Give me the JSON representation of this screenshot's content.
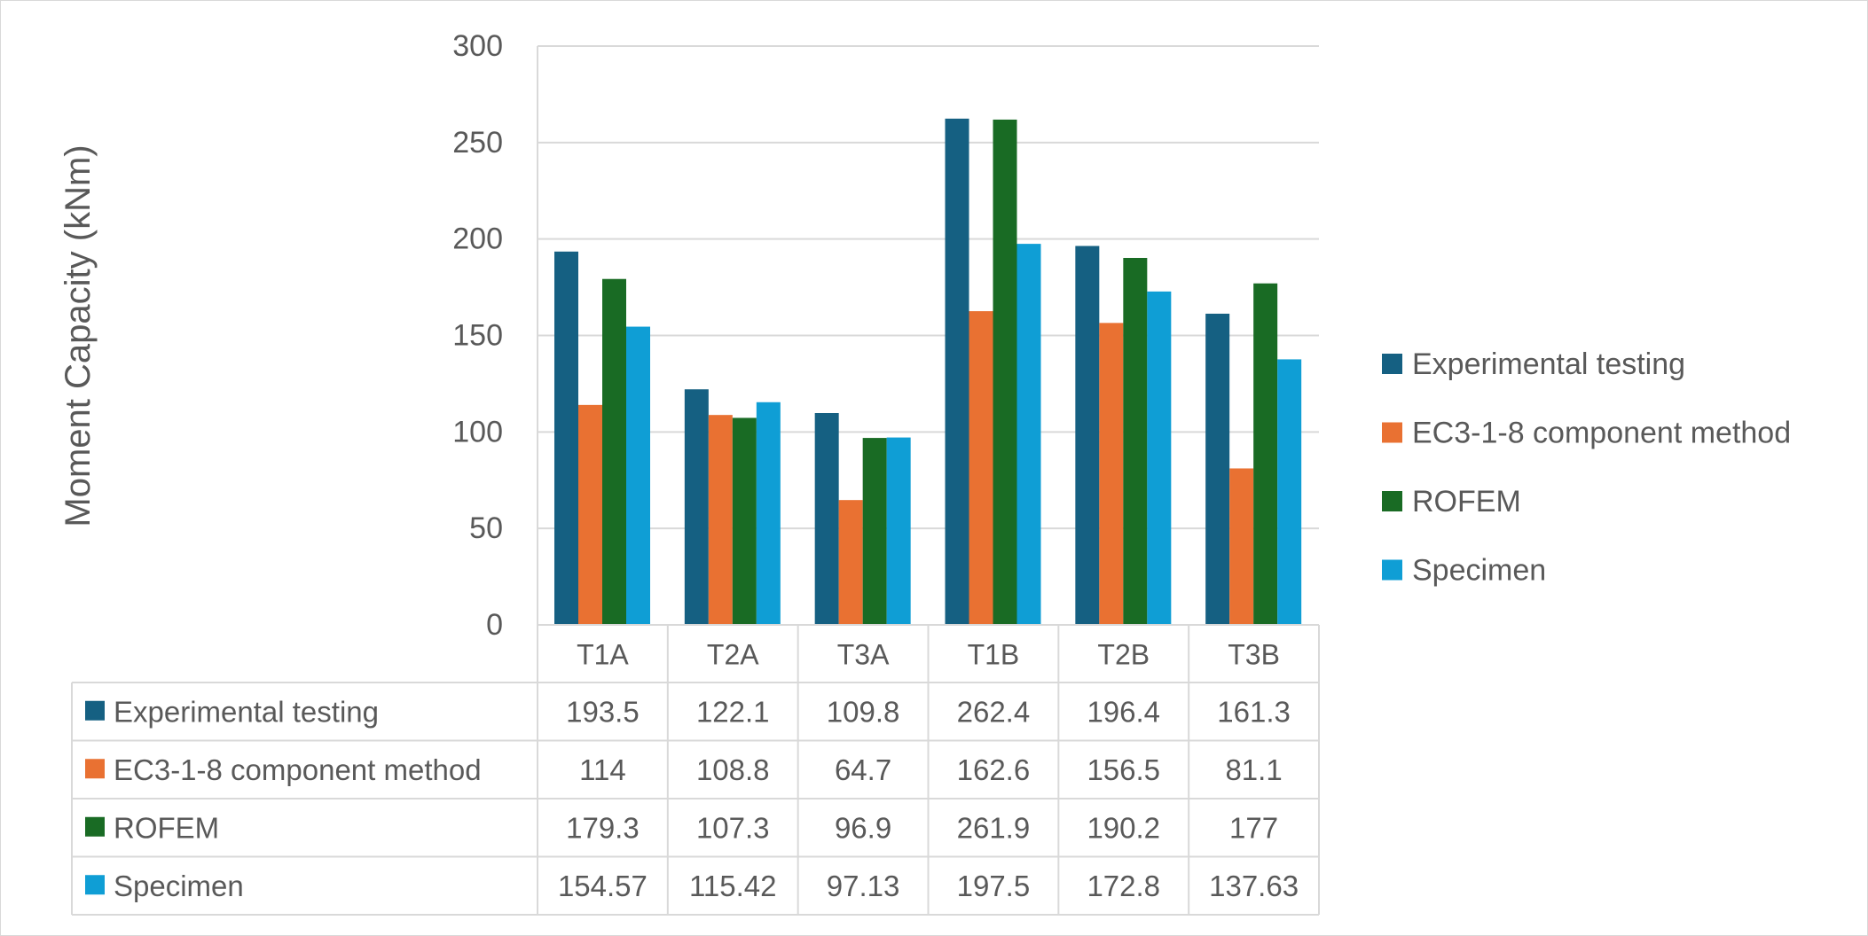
{
  "chart_data": {
    "type": "bar",
    "categories": [
      "T1A",
      "T2A",
      "T3A",
      "T1B",
      "T2B",
      "T3B"
    ],
    "series": [
      {
        "name": "Experimental testing",
        "color": "#156082",
        "values": [
          193.5,
          122.1,
          109.8,
          262.4,
          196.4,
          161.3
        ],
        "labels": [
          "193.5",
          "122.1",
          "109.8",
          "262.4",
          "196.4",
          "161.3"
        ]
      },
      {
        "name": "EC3-1-8 component method",
        "color": "#e97132",
        "values": [
          114,
          108.8,
          64.7,
          162.6,
          156.5,
          81.1
        ],
        "labels": [
          "114",
          "108.8",
          "64.7",
          "162.6",
          "156.5",
          "81.1"
        ]
      },
      {
        "name": "ROFEM",
        "color": "#196b24",
        "values": [
          179.3,
          107.3,
          96.9,
          261.9,
          190.2,
          177
        ],
        "labels": [
          "179.3",
          "107.3",
          "96.9",
          "261.9",
          "190.2",
          "177"
        ]
      },
      {
        "name": "Specimen",
        "color": "#0f9ed5",
        "values": [
          154.57,
          115.42,
          97.13,
          197.5,
          172.8,
          137.63
        ],
        "labels": [
          "154.57",
          "115.42",
          "97.13",
          "197.5",
          "172.8",
          "137.63"
        ]
      }
    ],
    "title": "",
    "xlabel": "",
    "ylabel": "Moment Capacity (kNm)",
    "ylim": [
      0,
      300
    ],
    "yticks": [
      "0",
      "50",
      "100",
      "150",
      "200",
      "250",
      "300"
    ],
    "grid": true,
    "legend": "right",
    "data_table": true
  }
}
